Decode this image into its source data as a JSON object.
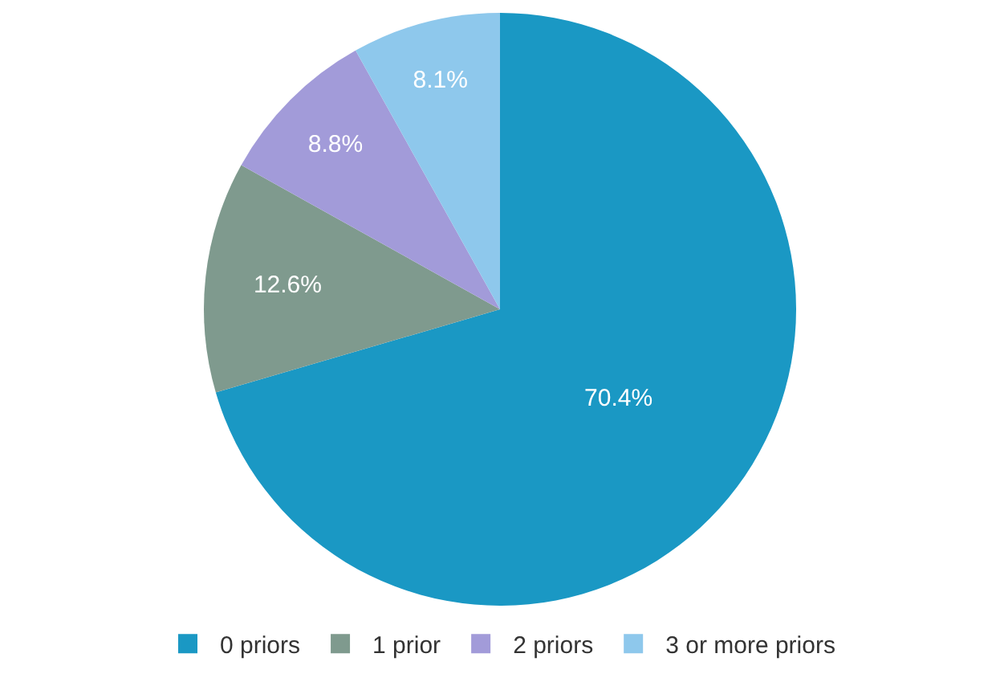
{
  "chart_data": {
    "type": "pie",
    "categories": [
      "0 priors",
      "1 prior",
      "2 priors",
      "3 or more priors"
    ],
    "values": [
      70.4,
      12.6,
      8.8,
      8.1
    ],
    "value_labels": [
      "70.4%",
      "12.6%",
      "8.8%",
      "8.1%"
    ],
    "colors": [
      "#1a98c4",
      "#7f9a8e",
      "#a29bd9",
      "#8ec8ec"
    ],
    "legend": "bottom"
  }
}
